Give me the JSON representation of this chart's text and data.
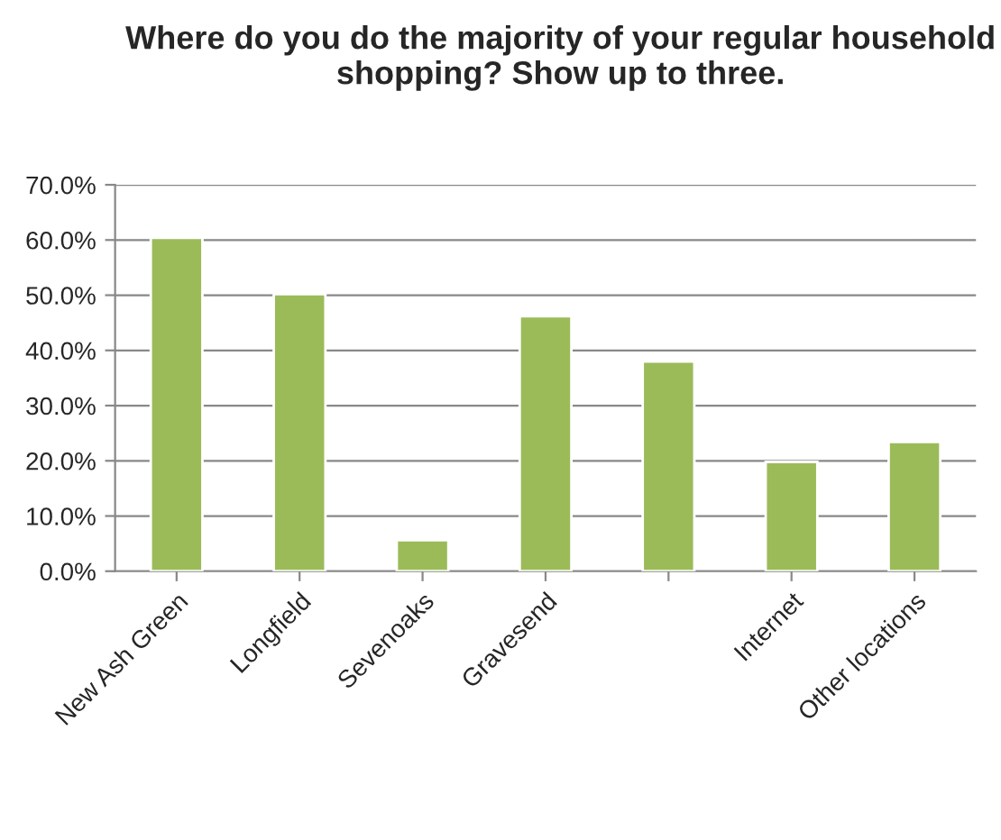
{
  "chart_data": {
    "type": "bar",
    "title": "Where do you do the majority of your regular household shopping? Show up to three.",
    "categories": [
      "New Ash Green",
      "Longfield",
      "Sevenoaks",
      "Gravesend",
      null,
      "Internet",
      "Other locations"
    ],
    "values": [
      60.4,
      50.2,
      5.6,
      46.2,
      38,
      19.8,
      23.4
    ],
    "color": "#9bbb59",
    "ylim": [
      0,
      70
    ],
    "yticks": [
      {
        "value": 0,
        "label": "0.0%"
      },
      {
        "value": 10,
        "label": "10.0%"
      },
      {
        "value": 20,
        "label": "20.0%"
      },
      {
        "value": 30,
        "label": "30.0%"
      },
      {
        "value": 40,
        "label": "40.0%"
      },
      {
        "value": 50,
        "label": "50.0%"
      },
      {
        "value": 60,
        "label": "60.0%"
      },
      {
        "value": 70,
        "label": "70.0%"
      }
    ],
    "grid": "y",
    "legend": false
  }
}
